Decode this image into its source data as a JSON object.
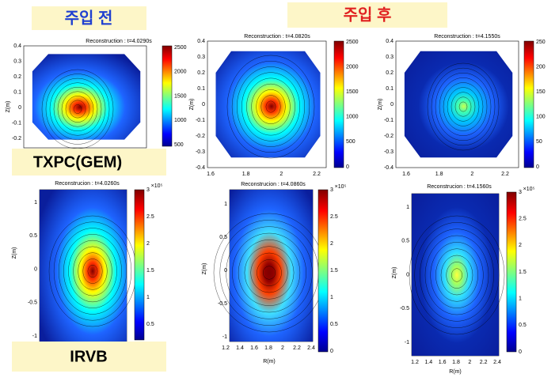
{
  "labels": {
    "before": "주입 전",
    "after": "주입 후",
    "txpc": "TXPC(GEM)",
    "irvb": "IRVB"
  },
  "panels": [
    {
      "title": "Reconstruction : t=4.0290s",
      "ylabel": "Z(m)",
      "yticks": [
        0.4,
        0.3,
        0.2,
        0.1,
        0,
        -0.1,
        -0.2
      ],
      "cbar": [
        2500,
        2000,
        1500,
        1000,
        500
      ]
    },
    {
      "title": "Reconstruction : t=4.0820s",
      "ylabel": "Z(m)",
      "yticks": [
        0.4,
        0.3,
        0.2,
        0.1,
        0,
        -0.1,
        -0.2,
        -0.3,
        -0.4
      ],
      "xticks": [
        1.6,
        1.8,
        2,
        2.2
      ],
      "cbar": [
        2500,
        2000,
        1500,
        1000,
        500,
        0
      ]
    },
    {
      "title": "Reconstruction : t=4.1550s",
      "ylabel": "Z(m)",
      "yticks": [
        0.4,
        0.3,
        0.2,
        0.1,
        0,
        -0.1,
        -0.2,
        -0.3,
        -0.4
      ],
      "xticks": [
        1.6,
        1.8,
        2,
        2.2
      ],
      "cbar": [
        250,
        200,
        150,
        100,
        50,
        0
      ]
    },
    {
      "title": "Reconstrucion : t=4.0260s",
      "ylabel": "Z(m)",
      "yticks": [
        1,
        0.5,
        0,
        -0.5,
        -1
      ],
      "cbar_exponent": "×10⁵",
      "cbar": [
        3,
        2.5,
        2,
        1.5,
        1,
        0.5
      ]
    },
    {
      "title": "Reconstrucion : t=4.0860s",
      "ylabel": "Z(m)",
      "xlabel": "R(m)",
      "yticks": [
        1,
        0.5,
        0,
        -0.5,
        -1
      ],
      "xticks": [
        1.2,
        1.4,
        1.6,
        1.8,
        2,
        2.2,
        2.4
      ],
      "cbar_exponent": "×10⁵",
      "cbar": [
        3,
        2.5,
        2,
        1.5,
        1,
        0.5,
        0
      ]
    },
    {
      "title": "Reconstrucion : t=4.1560s",
      "ylabel": "Z(m)",
      "xlabel": "R(m)",
      "yticks": [
        1,
        0.5,
        0,
        -0.5,
        -1
      ],
      "xticks": [
        1.2,
        1.4,
        1.6,
        1.8,
        2,
        2.2,
        2.4
      ],
      "cbar_exponent": "×10⁵",
      "cbar": [
        3,
        2.5,
        2,
        1.5,
        1,
        0.5,
        0
      ]
    }
  ]
}
